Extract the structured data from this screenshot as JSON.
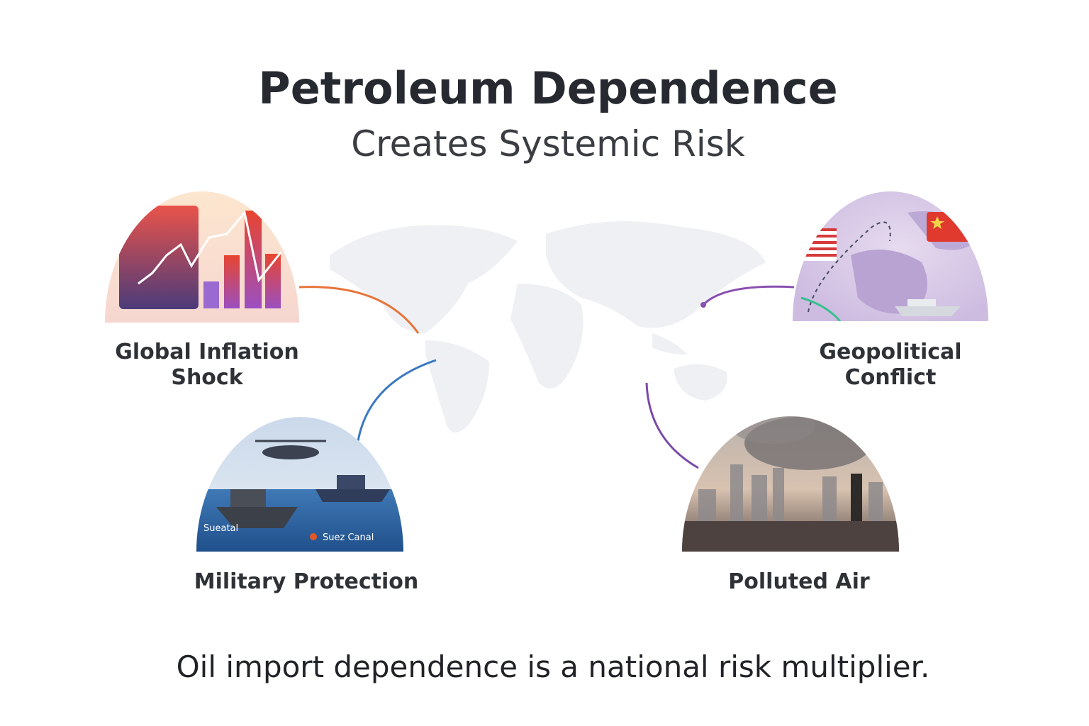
{
  "header": {
    "title": "Petroleum Dependence",
    "subtitle": "Creates Systemic Risk"
  },
  "risks": [
    {
      "label": [
        "Global Inflation",
        "Shock"
      ]
    },
    {
      "label": [
        "Military Protection"
      ],
      "image_labels": [
        "Sueatal",
        "Suez Canal"
      ]
    },
    {
      "label": [
        "Geopolitical",
        "Conflict"
      ]
    },
    {
      "label": [
        "Polluted Air"
      ]
    }
  ],
  "footer": "Oil import dependence is a national risk multiplier."
}
